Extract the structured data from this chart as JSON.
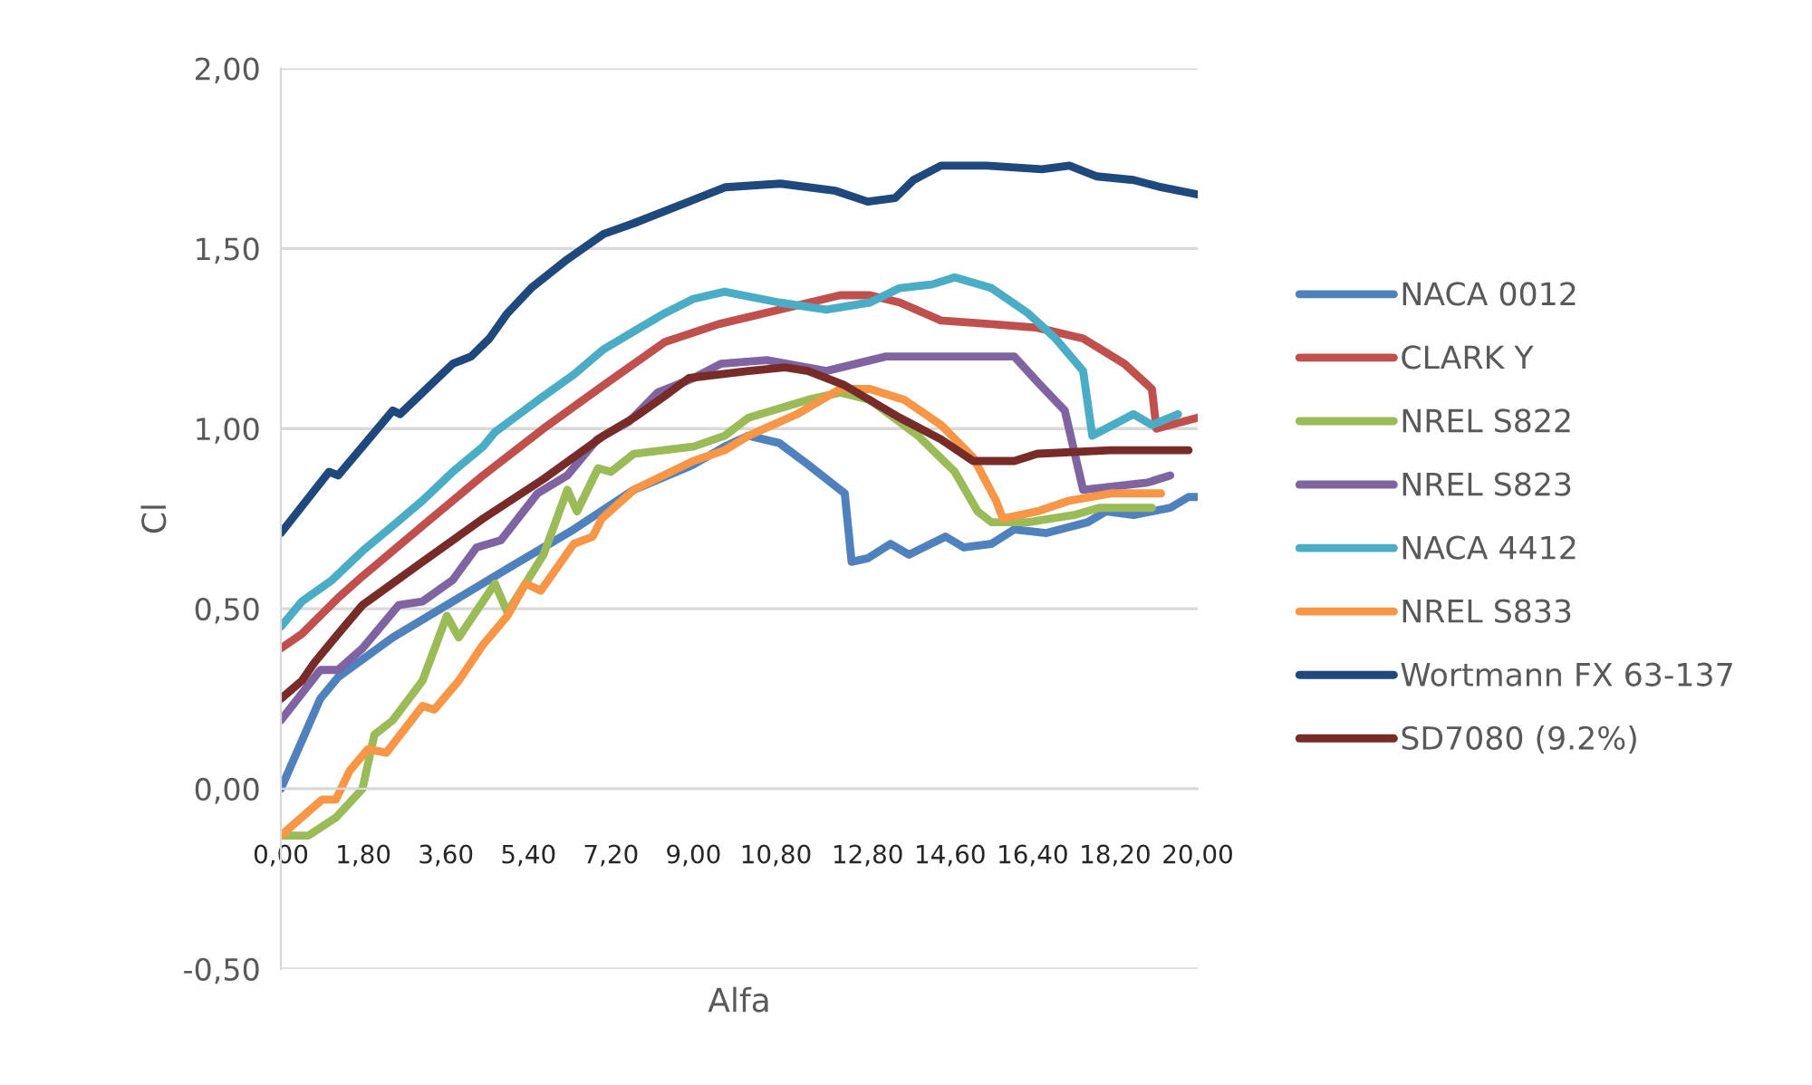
{
  "chart_data": {
    "type": "line",
    "xlabel": "Alfa",
    "ylabel": "Cl",
    "xlim": [
      0,
      20
    ],
    "ylim": [
      -0.5,
      2
    ],
    "xticks": [
      {
        "value": 0,
        "label": "0,00"
      },
      {
        "value": 1.8,
        "label": "1,80"
      },
      {
        "value": 3.6,
        "label": "3,60"
      },
      {
        "value": 5.4,
        "label": "5,40"
      },
      {
        "value": 7.2,
        "label": "7,20"
      },
      {
        "value": 9.0,
        "label": "9,00"
      },
      {
        "value": 10.8,
        "label": "10,80"
      },
      {
        "value": 12.8,
        "label": "12,80"
      },
      {
        "value": 14.6,
        "label": "14,60"
      },
      {
        "value": 16.4,
        "label": "16,40"
      },
      {
        "value": 18.2,
        "label": "18,20"
      },
      {
        "value": 20,
        "label": "20,00"
      }
    ],
    "yticks": [
      {
        "value": -0.5,
        "label": "-0,50"
      },
      {
        "value": 0,
        "label": "0,00"
      },
      {
        "value": 0.5,
        "label": "0,50"
      },
      {
        "value": 1.0,
        "label": "1,00"
      },
      {
        "value": 1.5,
        "label": "1,50"
      },
      {
        "value": 2.0,
        "label": "2,00"
      }
    ],
    "grid": "y",
    "legend": "right",
    "marker": "none",
    "line_style": "solid",
    "series": [
      {
        "name": "NACA 0012",
        "color": "#4f81bd",
        "x": [
          0,
          0.86,
          1.25,
          2.44,
          3.75,
          5.06,
          6.39,
          7.7,
          9.0,
          9.68,
          10.2,
          10.87,
          11.5,
          12.3,
          12.45,
          12.8,
          13.3,
          13.7,
          14.5,
          14.9,
          15.5,
          16.0,
          16.7,
          17.6,
          18.0,
          18.6,
          19.4,
          19.8,
          20
        ],
        "values": [
          0.0,
          0.25,
          0.31,
          0.42,
          0.52,
          0.62,
          0.72,
          0.83,
          0.9,
          0.95,
          0.98,
          0.96,
          0.9,
          0.82,
          0.63,
          0.64,
          0.68,
          0.65,
          0.7,
          0.67,
          0.68,
          0.72,
          0.71,
          0.74,
          0.77,
          0.76,
          0.78,
          0.81,
          0.81
        ]
      },
      {
        "name": "CLARK Y",
        "color": "#c0504d",
        "x": [
          0,
          0.46,
          1.25,
          1.78,
          3.09,
          4.41,
          5.73,
          7.04,
          8.37,
          9.55,
          10.87,
          12.2,
          12.85,
          13.5,
          14.4,
          15.5,
          16.5,
          17.5,
          18.4,
          19.0,
          19.1,
          20
        ],
        "values": [
          0.39,
          0.43,
          0.53,
          0.59,
          0.73,
          0.87,
          1.0,
          1.12,
          1.24,
          1.29,
          1.33,
          1.37,
          1.37,
          1.35,
          1.3,
          1.29,
          1.28,
          1.25,
          1.18,
          1.11,
          1.0,
          1.03
        ]
      },
      {
        "name": "NREL S822",
        "color": "#9bbb59",
        "x": [
          0,
          0.6,
          1.2,
          1.78,
          2.04,
          2.44,
          3.09,
          3.62,
          3.88,
          4.67,
          4.94,
          5.73,
          6.25,
          6.46,
          6.92,
          7.2,
          7.7,
          9.0,
          9.68,
          10.2,
          11.5,
          12.2,
          12.85,
          13.9,
          14.7,
          15.2,
          15.5,
          16.3,
          17.3,
          17.85,
          19.0
        ],
        "values": [
          -0.13,
          -0.13,
          -0.08,
          0.0,
          0.15,
          0.19,
          0.3,
          0.48,
          0.42,
          0.57,
          0.49,
          0.65,
          0.83,
          0.77,
          0.89,
          0.88,
          0.93,
          0.95,
          0.98,
          1.03,
          1.08,
          1.1,
          1.08,
          0.98,
          0.88,
          0.77,
          0.74,
          0.74,
          0.76,
          0.78,
          0.78
        ]
      },
      {
        "name": "NREL S823",
        "color": "#8064a2",
        "x": [
          0,
          0.86,
          1.25,
          1.78,
          2.57,
          3.09,
          3.75,
          4.27,
          4.8,
          5.6,
          6.25,
          6.9,
          7.6,
          8.22,
          9.0,
          9.6,
          10.6,
          11.9,
          13.2,
          14.4,
          16.0,
          16.5,
          17.1,
          17.5,
          18.9,
          19.4
        ],
        "values": [
          0.19,
          0.33,
          0.33,
          0.39,
          0.51,
          0.52,
          0.58,
          0.67,
          0.69,
          0.82,
          0.87,
          0.97,
          1.02,
          1.1,
          1.14,
          1.18,
          1.19,
          1.16,
          1.2,
          1.2,
          1.2,
          1.13,
          1.05,
          0.83,
          0.85,
          0.87
        ]
      },
      {
        "name": "NACA 4412",
        "color": "#4bacc6",
        "x": [
          0,
          0.46,
          1.12,
          1.78,
          2.44,
          3.09,
          3.75,
          4.41,
          4.67,
          5.2,
          5.73,
          6.39,
          7.04,
          7.7,
          8.37,
          9.0,
          9.68,
          10.87,
          11.9,
          12.85,
          13.5,
          14.2,
          14.7,
          15.5,
          16.3,
          16.9,
          17.5,
          17.7,
          18.6,
          19.0,
          19.57
        ],
        "values": [
          0.45,
          0.52,
          0.58,
          0.66,
          0.73,
          0.8,
          0.88,
          0.95,
          0.99,
          1.04,
          1.09,
          1.15,
          1.22,
          1.27,
          1.32,
          1.36,
          1.38,
          1.35,
          1.33,
          1.35,
          1.39,
          1.4,
          1.42,
          1.39,
          1.32,
          1.25,
          1.16,
          0.98,
          1.04,
          1.01,
          1.04
        ]
      },
      {
        "name": "NREL S833",
        "color": "#f79646",
        "x": [
          0,
          0.9,
          1.2,
          1.5,
          1.9,
          2.3,
          3.09,
          3.35,
          3.88,
          4.41,
          4.94,
          5.34,
          5.67,
          6.39,
          6.8,
          7.0,
          7.7,
          9.0,
          9.68,
          10.2,
          11.26,
          12.2,
          12.85,
          13.6,
          14.4,
          15.1,
          15.6,
          15.75,
          16.5,
          17.2,
          18.1,
          19.2
        ],
        "values": [
          -0.13,
          -0.03,
          -0.03,
          0.05,
          0.11,
          0.1,
          0.23,
          0.22,
          0.3,
          0.4,
          0.48,
          0.57,
          0.55,
          0.68,
          0.7,
          0.75,
          0.83,
          0.91,
          0.94,
          0.98,
          1.04,
          1.11,
          1.11,
          1.08,
          1.01,
          0.92,
          0.8,
          0.75,
          0.77,
          0.8,
          0.82,
          0.82
        ]
      },
      {
        "name": "Wortmann FX 63-137",
        "color": "#1f497d",
        "x": [
          0,
          1.05,
          1.25,
          1.78,
          2.44,
          2.6,
          3.09,
          3.75,
          4.15,
          4.55,
          4.94,
          5.46,
          6.25,
          7.04,
          7.7,
          8.7,
          9.7,
          10.9,
          12.1,
          12.8,
          13.4,
          13.8,
          14.4,
          15.4,
          16.6,
          17.2,
          17.8,
          18.6,
          19.2,
          20
        ],
        "values": [
          0.71,
          0.88,
          0.87,
          0.95,
          1.05,
          1.04,
          1.1,
          1.18,
          1.2,
          1.25,
          1.32,
          1.39,
          1.47,
          1.54,
          1.57,
          1.62,
          1.67,
          1.68,
          1.66,
          1.63,
          1.64,
          1.69,
          1.73,
          1.73,
          1.72,
          1.73,
          1.7,
          1.69,
          1.67,
          1.65
        ]
      },
      {
        "name": "SD7080 (9.2%)",
        "color": "#772c2a",
        "x": [
          0,
          0.46,
          0.73,
          1.25,
          1.78,
          3.09,
          4.41,
          5.73,
          7.04,
          7.7,
          8.37,
          8.9,
          10.2,
          11.0,
          11.5,
          12.3,
          13.5,
          14.4,
          15.1,
          16.0,
          16.5,
          18.1,
          19.8
        ],
        "values": [
          0.25,
          0.3,
          0.35,
          0.43,
          0.51,
          0.63,
          0.75,
          0.86,
          0.98,
          1.03,
          1.09,
          1.14,
          1.16,
          1.17,
          1.16,
          1.12,
          1.03,
          0.97,
          0.91,
          0.91,
          0.93,
          0.94,
          0.94
        ]
      }
    ]
  }
}
